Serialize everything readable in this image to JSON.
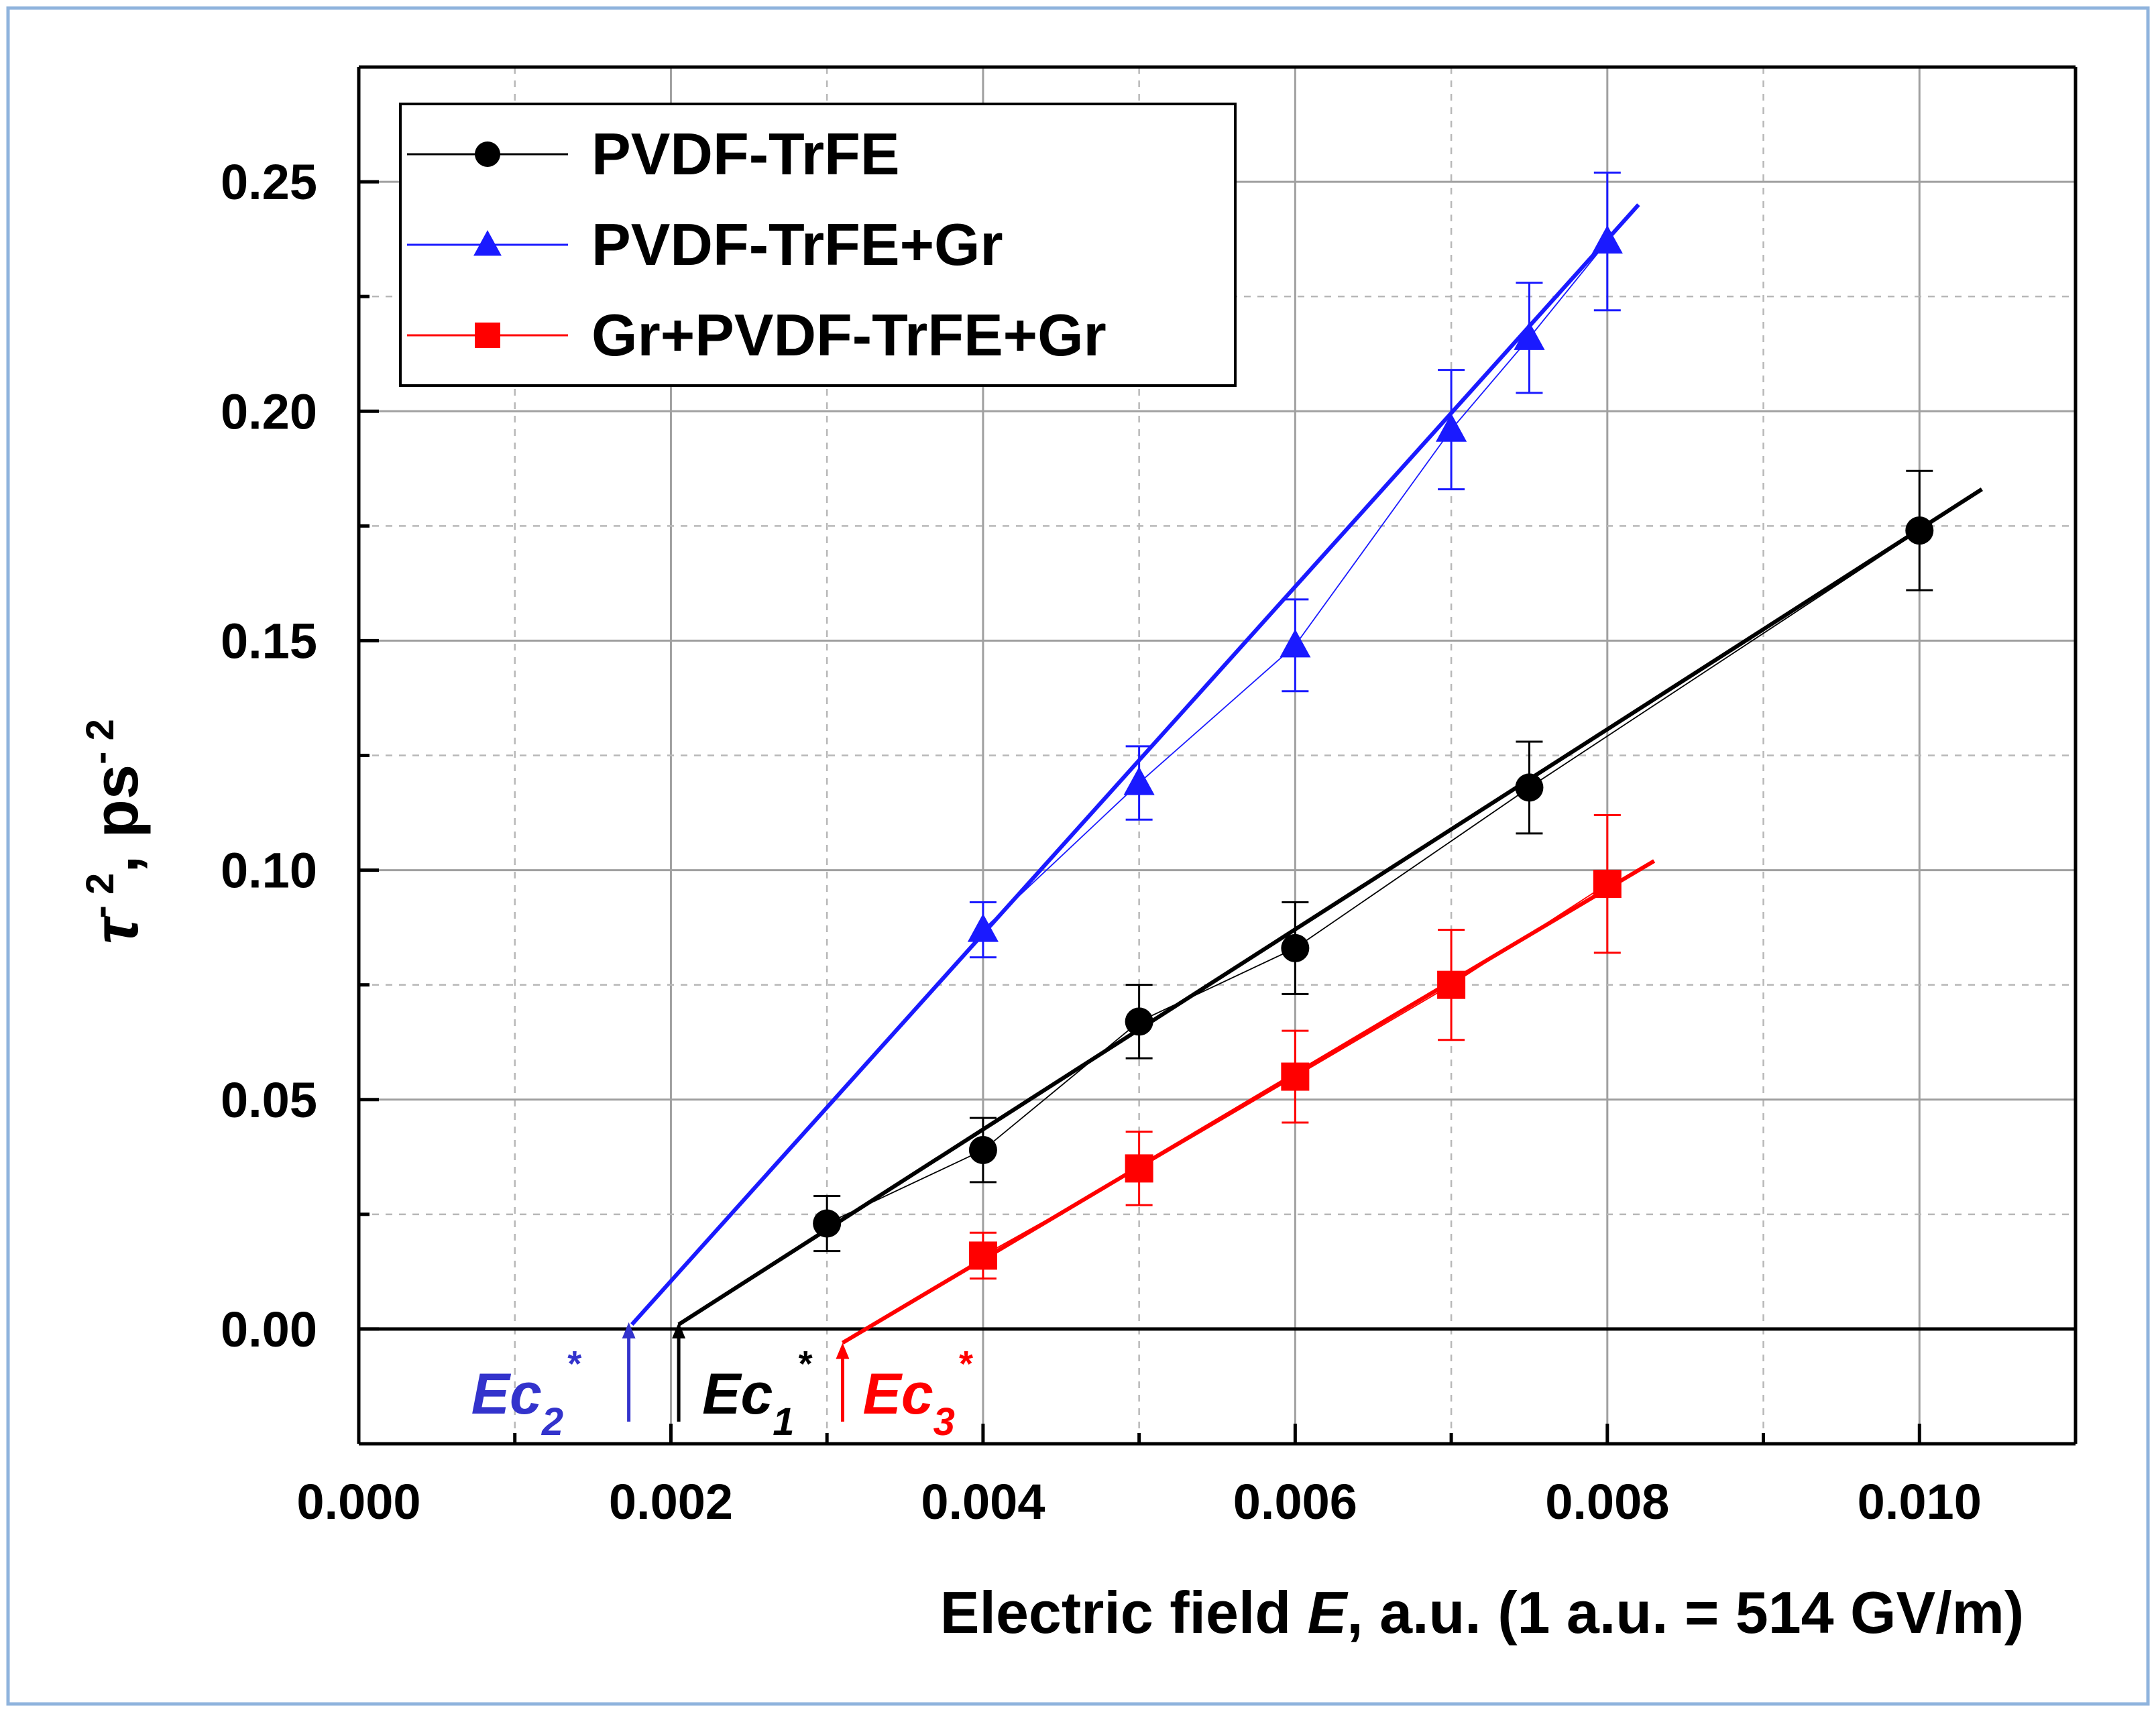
{
  "colors": {
    "frame_border": "#8fb3dd",
    "grid_major": "#a0a0a0",
    "grid_minor": "#b8b8b8",
    "axis": "#000000",
    "series_black": "#000000",
    "series_blue": "#1a1aff",
    "series_red": "#ff0000",
    "ec2_color": "#3333cc"
  },
  "chart_data": {
    "type": "scatter",
    "title": "",
    "xlabel": {
      "prefix": "Electric field ",
      "symbol": "E",
      "suffix": ", a.u. (1 a.u. = 514 GV/m)"
    },
    "ylabel": {
      "symbol": "τ",
      "exponent": "- 2",
      "unit": ", ps",
      "unit_exponent": "- 2"
    },
    "xlim": [
      0.0,
      0.011
    ],
    "ylim": [
      -0.025,
      0.275
    ],
    "x_ticks": [
      {
        "value": 0.0,
        "label": "0.000"
      },
      {
        "value": 0.002,
        "label": "0.002"
      },
      {
        "value": 0.004,
        "label": "0.004"
      },
      {
        "value": 0.006,
        "label": "0.006"
      },
      {
        "value": 0.008,
        "label": "0.008"
      },
      {
        "value": 0.01,
        "label": "0.010"
      }
    ],
    "x_minor_ticks": [
      0.001,
      0.003,
      0.005,
      0.007,
      0.009
    ],
    "y_ticks": [
      {
        "value": 0.0,
        "label": "0.00"
      },
      {
        "value": 0.05,
        "label": "0.05"
      },
      {
        "value": 0.1,
        "label": "0.10"
      },
      {
        "value": 0.15,
        "label": "0.15"
      },
      {
        "value": 0.2,
        "label": "0.20"
      },
      {
        "value": 0.25,
        "label": "0.25"
      }
    ],
    "y_minor_ticks": [
      0.025,
      0.075,
      0.125,
      0.175,
      0.225
    ],
    "legend_position": "top-left",
    "series": [
      {
        "name": "PVDF-TrFE",
        "color_key": "series_black",
        "marker": "circle",
        "x": [
          0.003,
          0.004,
          0.005,
          0.006,
          0.0075,
          0.01
        ],
        "y": [
          0.023,
          0.039,
          0.067,
          0.083,
          0.118,
          0.174
        ],
        "err": [
          0.006,
          0.007,
          0.008,
          0.01,
          0.01,
          0.013
        ],
        "fit": {
          "x": [
            0.00205,
            0.0104
          ],
          "y": [
            0.001,
            0.183
          ]
        }
      },
      {
        "name": "PVDF-TrFE+Gr",
        "color_key": "series_blue",
        "marker": "triangle",
        "x": [
          0.004,
          0.005,
          0.006,
          0.007,
          0.0075,
          0.008
        ],
        "y": [
          0.087,
          0.119,
          0.149,
          0.196,
          0.216,
          0.237
        ],
        "err": [
          0.006,
          0.008,
          0.01,
          0.013,
          0.012,
          0.015
        ],
        "fit": {
          "x": [
            0.00175,
            0.0082
          ],
          "y": [
            0.001,
            0.245
          ]
        }
      },
      {
        "name": "Gr+PVDF-TrFE+Gr",
        "color_key": "series_red",
        "marker": "square",
        "x": [
          0.004,
          0.005,
          0.006,
          0.007,
          0.008
        ],
        "y": [
          0.016,
          0.035,
          0.055,
          0.075,
          0.097
        ],
        "err": [
          0.005,
          0.008,
          0.01,
          0.012,
          0.015
        ],
        "fit": {
          "x": [
            0.0031,
            0.0083
          ],
          "y": [
            -0.003,
            0.102
          ]
        }
      }
    ],
    "annotations": [
      {
        "base": "Ec",
        "sub": "2",
        "sup": "*",
        "x": 0.00173,
        "color_key": "ec2_color"
      },
      {
        "base": "Ec",
        "sub": "1",
        "sup": "*",
        "x": 0.00205,
        "color_key": "series_black"
      },
      {
        "base": "Ec",
        "sub": "3",
        "sup": "*",
        "x": 0.0031,
        "color_key": "series_red"
      }
    ]
  }
}
